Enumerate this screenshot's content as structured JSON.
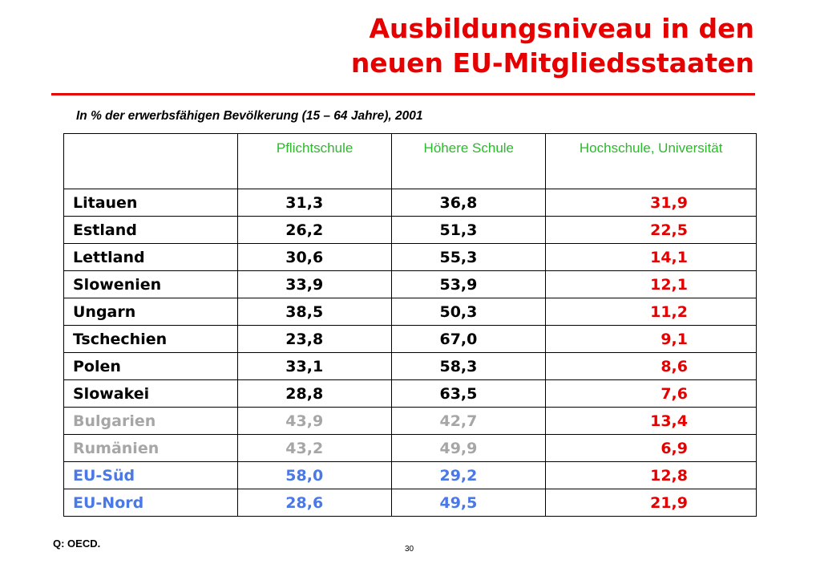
{
  "title": {
    "line1": "Ausbildungsniveau in den",
    "line2": "neuen EU-Mitgliedsstaaten"
  },
  "subtitle": "In % der erwerbsfähigen Bevölkerung (15 – 64 Jahre), 2001",
  "colors": {
    "accent": "#e60000",
    "header": "#2db82d",
    "gray": "#a6a6a6",
    "blue": "#4a78e6"
  },
  "table": {
    "headers": [
      "",
      "Pflichtschule",
      "Höhere Schule",
      "Hochschule, Universität"
    ],
    "rows": [
      {
        "country": "Litauen",
        "pflicht": "31,3",
        "hoeher": "36,8",
        "hoch": "31,9",
        "style": "normal"
      },
      {
        "country": "Estland",
        "pflicht": "26,2",
        "hoeher": "51,3",
        "hoch": "22,5",
        "style": "normal"
      },
      {
        "country": "Lettland",
        "pflicht": "30,6",
        "hoeher": "55,3",
        "hoch": "14,1",
        "style": "normal"
      },
      {
        "country": "Slowenien",
        "pflicht": "33,9",
        "hoeher": "53,9",
        "hoch": "12,1",
        "style": "normal"
      },
      {
        "country": "Ungarn",
        "pflicht": "38,5",
        "hoeher": "50,3",
        "hoch": "11,2",
        "style": "normal"
      },
      {
        "country": "Tschechien",
        "pflicht": "23,8",
        "hoeher": "67,0",
        "hoch": "9,1",
        "style": "normal"
      },
      {
        "country": "Polen",
        "pflicht": "33,1",
        "hoeher": "58,3",
        "hoch": "8,6",
        "style": "normal"
      },
      {
        "country": "Slowakei",
        "pflicht": "28,8",
        "hoeher": "63,5",
        "hoch": "7,6",
        "style": "normal"
      },
      {
        "country": "Bulgarien",
        "pflicht": "43,9",
        "hoeher": "42,7",
        "hoch": "13,4",
        "style": "gray"
      },
      {
        "country": "Rumänien",
        "pflicht": "43,2",
        "hoeher": "49,9",
        "hoch": "6,9",
        "style": "gray"
      },
      {
        "country": "EU-Süd",
        "pflicht": "58,0",
        "hoeher": "29,2",
        "hoch": "12,8",
        "style": "blue"
      },
      {
        "country": "EU-Nord",
        "pflicht": "28,6",
        "hoeher": "49,5",
        "hoch": "21,9",
        "style": "blue"
      }
    ]
  },
  "source": "Q: OECD.",
  "page_number": "30"
}
